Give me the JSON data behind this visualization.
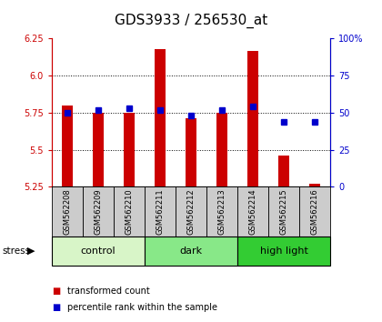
{
  "title": "GDS3933 / 256530_at",
  "samples": [
    "GSM562208",
    "GSM562209",
    "GSM562210",
    "GSM562211",
    "GSM562212",
    "GSM562213",
    "GSM562214",
    "GSM562215",
    "GSM562216"
  ],
  "transformed_counts": [
    5.8,
    5.75,
    5.75,
    6.18,
    5.71,
    5.75,
    6.17,
    5.46,
    5.27
  ],
  "percentile_ranks": [
    50,
    52,
    53,
    52,
    48,
    52,
    54,
    44,
    44
  ],
  "ylim": [
    5.25,
    6.25
  ],
  "yticks_left": [
    5.25,
    5.5,
    5.75,
    6.0,
    6.25
  ],
  "yticks_right": [
    0,
    25,
    50,
    75,
    100
  ],
  "groups": [
    {
      "label": "control",
      "start": 0,
      "end": 3,
      "color": "#d8f5c8"
    },
    {
      "label": "dark",
      "start": 3,
      "end": 6,
      "color": "#88e888"
    },
    {
      "label": "high light",
      "start": 6,
      "end": 9,
      "color": "#33cc33"
    }
  ],
  "bar_color": "#cc0000",
  "dot_color": "#0000cc",
  "bar_width": 0.35,
  "background_color": "#ffffff",
  "plot_bg": "#ffffff",
  "legend_items": [
    {
      "label": "transformed count",
      "color": "#cc0000"
    },
    {
      "label": "percentile rank within the sample",
      "color": "#0000cc"
    }
  ],
  "stress_label": "stress",
  "title_fontsize": 11,
  "tick_fontsize": 7,
  "label_fontsize": 8,
  "sample_fontsize": 6,
  "group_label_color_control": "#d8f5c8",
  "group_label_color_dark": "#88e888",
  "group_label_color_highlight": "#33cc33"
}
